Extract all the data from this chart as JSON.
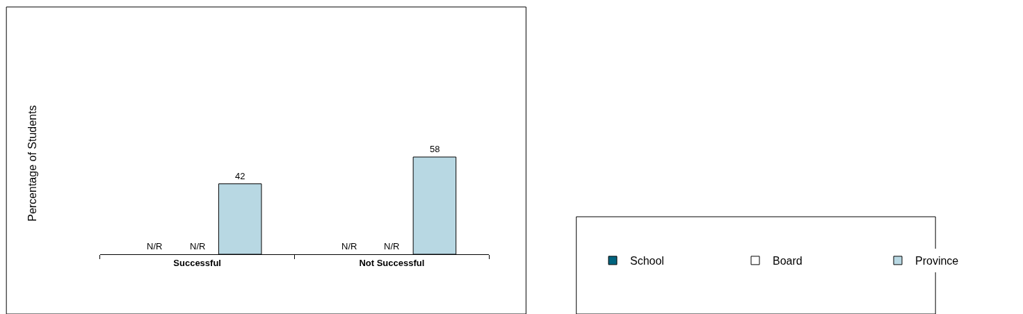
{
  "chart_data": {
    "type": "bar",
    "annotations": [
      "Percentage of Students"
    ],
    "categories": [
      "Successful",
      "Not Successful"
    ],
    "legend": "bottom right",
    "grid": false,
    "series": [
      {
        "name": "School",
        "color": "#00647f",
        "values": [
          null,
          null
        ],
        "value_labels": [
          "N/R",
          "N/R"
        ]
      },
      {
        "name": "Board",
        "color": "#ffffff",
        "values": [
          null,
          null
        ],
        "value_labels": [
          "N/R",
          "N/R"
        ]
      },
      {
        "name": "Province",
        "color": "#b8d8e3",
        "values": [
          42,
          58
        ],
        "value_labels": [
          "42",
          "58"
        ]
      }
    ]
  }
}
